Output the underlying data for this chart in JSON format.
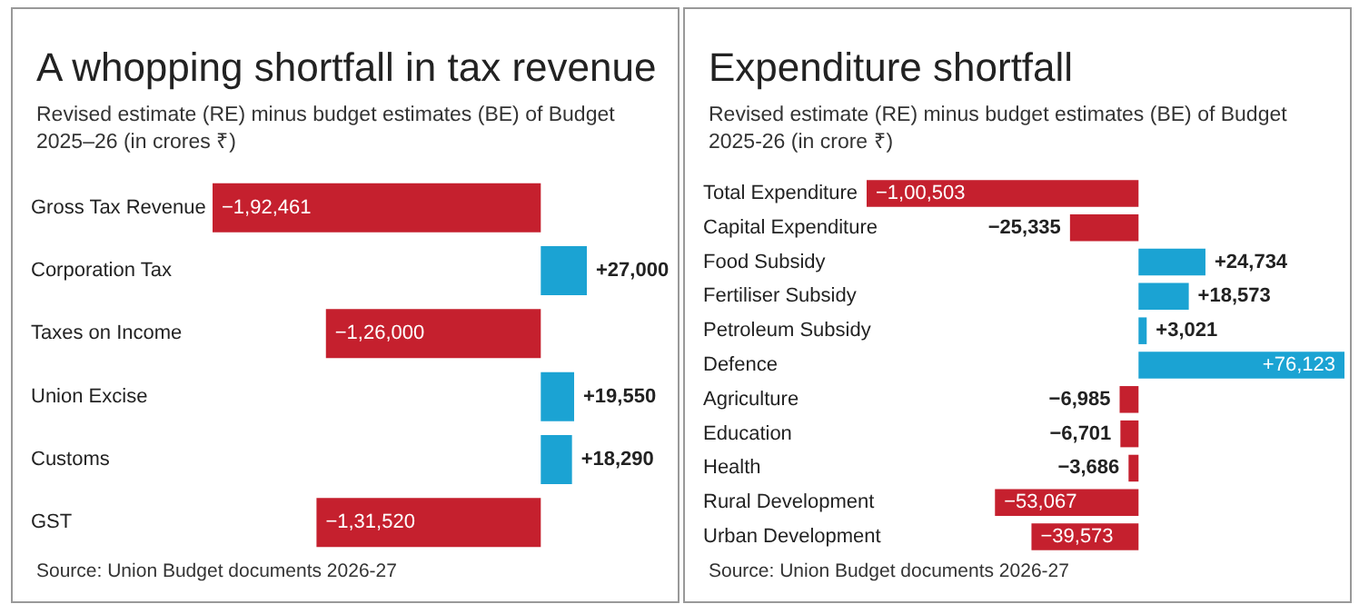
{
  "chart_data": [
    {
      "type": "bar",
      "orientation": "horizontal",
      "title": "A whopping shortfall in tax revenue",
      "subtitle": "Revised estimate (RE) minus budget estimates (BE) of Budget 2025–26 (in crores ₹)",
      "categories": [
        "Gross Tax Revenue",
        "Corporation Tax",
        "Taxes on Income",
        "Union Excise",
        "Customs",
        "GST"
      ],
      "values": [
        -192461,
        27000,
        -126000,
        19550,
        18290,
        -131520
      ],
      "colors": [
        "#c5202e",
        "#1ba3d3",
        "#c5202e",
        "#1ba3d3",
        "#1ba3d3",
        "#c5202e"
      ],
      "value_labels": [
        "−1,92,461",
        "+27,000",
        "−1,26,000",
        "+19,550",
        "+18,290",
        "−1,31,520"
      ],
      "annotations": [
        "Source: Union Budget documents 2026-27"
      ]
    },
    {
      "type": "bar",
      "orientation": "horizontal",
      "title": "Expenditure shortfall",
      "subtitle": "Revised estimate (RE) minus budget estimates (BE) of Budget 2025-26 (in crore ₹)",
      "categories": [
        "Total Expenditure",
        "Capital Expenditure",
        "Food Subsidy",
        "Fertiliser Subsidy",
        "Petroleum Subsidy",
        "Defence",
        "Agriculture",
        "Education",
        "Health",
        "Rural Development",
        "Urban Development"
      ],
      "values": [
        -100503,
        -25335,
        24734,
        18573,
        3021,
        76123,
        -6985,
        -6701,
        -3686,
        -53067,
        -39573
      ],
      "colors": [
        "#c5202e",
        "#c5202e",
        "#1ba3d3",
        "#1ba3d3",
        "#1ba3d3",
        "#1ba3d3",
        "#c5202e",
        "#c5202e",
        "#c5202e",
        "#c5202e",
        "#c5202e"
      ],
      "value_labels": [
        "−1,00,503",
        "−25,335",
        "+24,734",
        "+18,573",
        "+3,021",
        "+76,123",
        "−6,985",
        "−6,701",
        "−3,686",
        "−53,067",
        "−39,573"
      ],
      "annotations": [
        "Source: Union Budget documents 2026-27"
      ]
    }
  ]
}
